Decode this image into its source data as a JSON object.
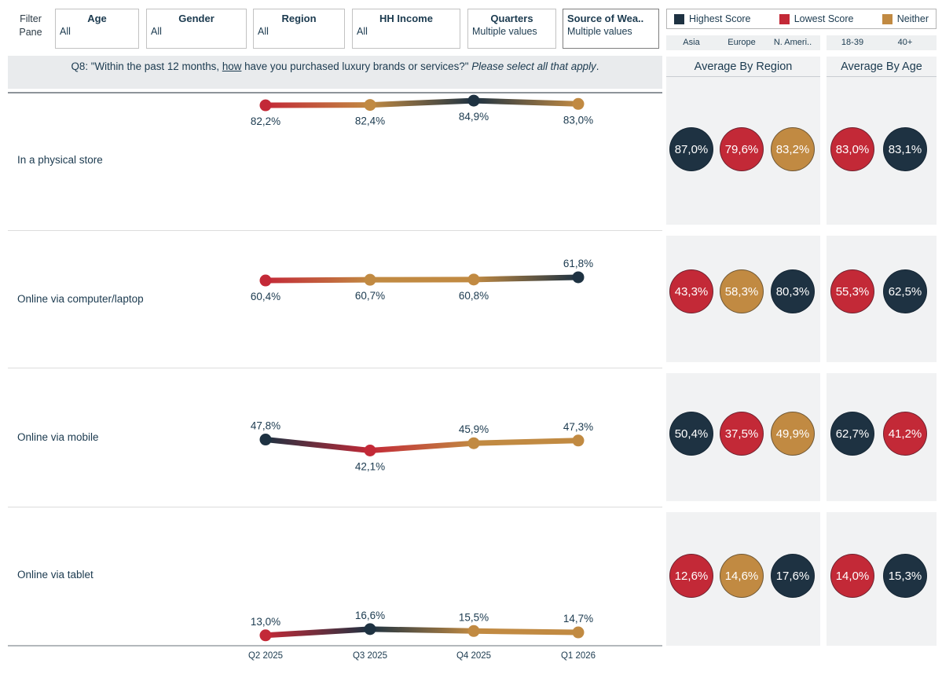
{
  "colors": {
    "highest": "#1e3242",
    "lowest": "#c32937",
    "neither": "#c18a42",
    "text": "#1b3a4f"
  },
  "filter_pane": {
    "label": "Filter Pane",
    "filters": [
      {
        "title": "Age",
        "value": "All",
        "title_align": "center"
      },
      {
        "title": "Gender",
        "value": "All",
        "title_align": "center"
      },
      {
        "title": "Region",
        "value": "All",
        "title_align": "center"
      },
      {
        "title": "HH Income",
        "value": "All",
        "title_align": "center"
      },
      {
        "title": "Quarters",
        "value": "Multiple values",
        "title_align": "center"
      },
      {
        "title": "Source of Wea..",
        "value": "Multiple values",
        "title_align": "left"
      }
    ]
  },
  "legend": {
    "items": [
      {
        "label": "Highest Score",
        "role": "highest"
      },
      {
        "label": "Lowest Score",
        "role": "lowest"
      },
      {
        "label": "Neither",
        "role": "neither"
      }
    ]
  },
  "column_headers": {
    "region": [
      "Asia",
      "Europe",
      "N. Ameri.."
    ],
    "age": [
      "18-39",
      "40+"
    ]
  },
  "question": {
    "part1": "Q8: \"Within the past 12 months, ",
    "underlined": "how",
    "part2": " have you purchased luxury brands or services?\" ",
    "italic": "Please select all that apply",
    "suffix": "."
  },
  "panels": {
    "region_title": "Average By Region",
    "age_title": "Average By Age"
  },
  "chart_data": {
    "type": "line",
    "x_categories": [
      "Q2 2025",
      "Q3 2025",
      "Q4 2025",
      "Q1 2026"
    ],
    "value_format": "percent, comma decimal",
    "legend_roles": {
      "highest": "Highest Score",
      "lowest": "Lowest Score",
      "neither": "Neither"
    },
    "rows": [
      {
        "label": "In a physical store",
        "values": [
          82.2,
          82.4,
          84.9,
          83.0
        ],
        "value_labels": [
          "82,2%",
          "82,4%",
          "84,9%",
          "83,0%"
        ],
        "point_roles": [
          "lowest",
          "neither",
          "highest",
          "neither"
        ],
        "label_sides": [
          "below",
          "below",
          "below",
          "below"
        ],
        "region_circles": [
          {
            "label": "87,0%",
            "role": "highest"
          },
          {
            "label": "79,6%",
            "role": "lowest"
          },
          {
            "label": "83,2%",
            "role": "neither"
          }
        ],
        "age_circles": [
          {
            "label": "83,0%",
            "role": "lowest"
          },
          {
            "label": "83,1%",
            "role": "highest"
          }
        ]
      },
      {
        "label": "Online via computer/laptop",
        "values": [
          60.4,
          60.7,
          60.8,
          61.8
        ],
        "value_labels": [
          "60,4%",
          "60,7%",
          "60,8%",
          "61,8%"
        ],
        "point_roles": [
          "lowest",
          "neither",
          "neither",
          "highest"
        ],
        "label_sides": [
          "below",
          "below",
          "below",
          "above"
        ],
        "region_circles": [
          {
            "label": "43,3%",
            "role": "lowest"
          },
          {
            "label": "58,3%",
            "role": "neither"
          },
          {
            "label": "80,3%",
            "role": "highest"
          }
        ],
        "age_circles": [
          {
            "label": "55,3%",
            "role": "lowest"
          },
          {
            "label": "62,5%",
            "role": "highest"
          }
        ]
      },
      {
        "label": "Online via mobile",
        "values": [
          47.8,
          42.1,
          45.9,
          47.3
        ],
        "value_labels": [
          "47,8%",
          "42,1%",
          "45,9%",
          "47,3%"
        ],
        "point_roles": [
          "highest",
          "lowest",
          "neither",
          "neither"
        ],
        "label_sides": [
          "above",
          "below",
          "above",
          "above"
        ],
        "region_circles": [
          {
            "label": "50,4%",
            "role": "highest"
          },
          {
            "label": "37,5%",
            "role": "lowest"
          },
          {
            "label": "49,9%",
            "role": "neither"
          }
        ],
        "age_circles": [
          {
            "label": "62,7%",
            "role": "highest"
          },
          {
            "label": "41,2%",
            "role": "lowest"
          }
        ]
      },
      {
        "label": "Online via tablet",
        "values": [
          13.0,
          16.6,
          15.5,
          14.7
        ],
        "value_labels": [
          "13,0%",
          "16,6%",
          "15,5%",
          "14,7%"
        ],
        "point_roles": [
          "lowest",
          "highest",
          "neither",
          "neither"
        ],
        "label_sides": [
          "above",
          "above",
          "above",
          "above"
        ],
        "region_circles": [
          {
            "label": "12,6%",
            "role": "lowest"
          },
          {
            "label": "14,6%",
            "role": "neither"
          },
          {
            "label": "17,6%",
            "role": "highest"
          }
        ],
        "age_circles": [
          {
            "label": "14,0%",
            "role": "lowest"
          },
          {
            "label": "15,3%",
            "role": "highest"
          }
        ]
      }
    ]
  }
}
